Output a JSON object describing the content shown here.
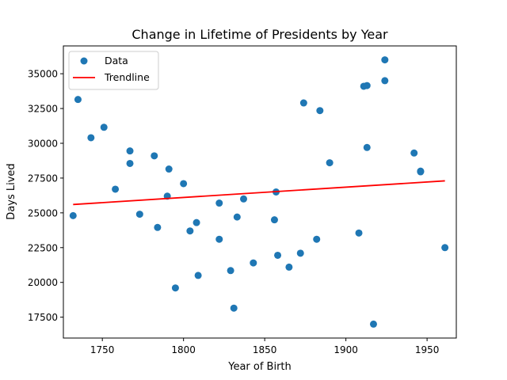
{
  "chart_data": {
    "type": "scatter",
    "title": "Change in Lifetime of Presidents by Year",
    "xlabel": "Year of Birth",
    "ylabel": "Days Lived",
    "xlim": [
      1726,
      1968
    ],
    "ylim": [
      16000,
      37000
    ],
    "xticks": [
      1750,
      1800,
      1850,
      1900,
      1950
    ],
    "yticks": [
      17500,
      20000,
      22500,
      25000,
      27500,
      30000,
      32500,
      35000
    ],
    "xtick_labels": [
      "1750",
      "1800",
      "1850",
      "1900",
      "1950"
    ],
    "ytick_labels": [
      "17500",
      "20000",
      "22500",
      "25000",
      "27500",
      "30000",
      "32500",
      "35000"
    ],
    "legend": {
      "position": "top-left",
      "entries": [
        "Data",
        "Trendline"
      ]
    },
    "grid": false,
    "colors": {
      "data": "#1f77b4",
      "trendline": "#ff0000"
    },
    "series": [
      {
        "name": "Data",
        "kind": "scatter",
        "points": [
          [
            1732,
            24800
          ],
          [
            1735,
            33150
          ],
          [
            1743,
            30400
          ],
          [
            1751,
            31150
          ],
          [
            1758,
            26700
          ],
          [
            1767,
            29450
          ],
          [
            1767,
            28550
          ],
          [
            1773,
            24900
          ],
          [
            1782,
            29100
          ],
          [
            1784,
            23950
          ],
          [
            1790,
            26200
          ],
          [
            1791,
            28150
          ],
          [
            1795,
            19600
          ],
          [
            1800,
            27100
          ],
          [
            1804,
            23700
          ],
          [
            1808,
            24300
          ],
          [
            1809,
            20500
          ],
          [
            1822,
            25700
          ],
          [
            1822,
            23100
          ],
          [
            1829,
            20850
          ],
          [
            1831,
            18150
          ],
          [
            1833,
            24700
          ],
          [
            1837,
            26000
          ],
          [
            1843,
            21400
          ],
          [
            1856,
            24500
          ],
          [
            1857,
            26500
          ],
          [
            1858,
            21950
          ],
          [
            1865,
            21100
          ],
          [
            1872,
            22100
          ],
          [
            1874,
            32900
          ],
          [
            1882,
            23100
          ],
          [
            1884,
            32350
          ],
          [
            1890,
            28600
          ],
          [
            1908,
            23550
          ],
          [
            1911,
            34100
          ],
          [
            1913,
            34150
          ],
          [
            1913,
            29700
          ],
          [
            1917,
            17000
          ],
          [
            1924,
            36000
          ],
          [
            1924,
            34500
          ],
          [
            1942,
            29300
          ],
          [
            1946,
            27950
          ],
          [
            1946,
            28000
          ],
          [
            1961,
            22500
          ]
        ]
      },
      {
        "name": "Trendline",
        "kind": "line",
        "points": [
          [
            1732,
            25600
          ],
          [
            1961,
            27300
          ]
        ]
      }
    ]
  }
}
